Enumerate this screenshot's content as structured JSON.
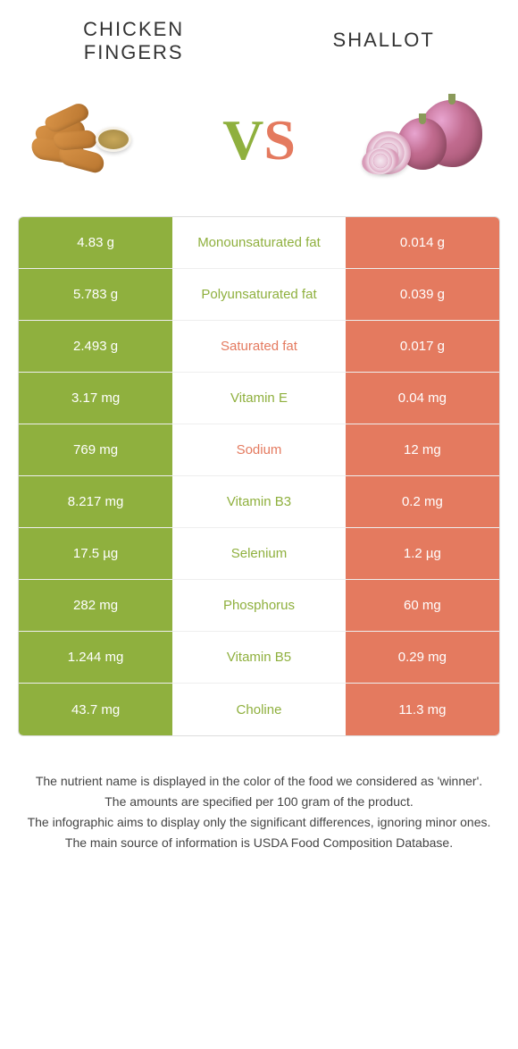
{
  "header": {
    "left_title": "CHICKEN FINGERS",
    "right_title": "SHALLOT"
  },
  "vs": {
    "v": "V",
    "s": "S"
  },
  "colors": {
    "left": "#8fb03e",
    "right": "#e47a5f",
    "left_text": "#8fb03e",
    "right_text": "#e47a5f"
  },
  "rows": [
    {
      "left": "4.83 g",
      "label": "Monounsaturated fat",
      "right": "0.014 g",
      "label_color": "#8fb03e"
    },
    {
      "left": "5.783 g",
      "label": "Polyunsaturated fat",
      "right": "0.039 g",
      "label_color": "#8fb03e"
    },
    {
      "left": "2.493 g",
      "label": "Saturated fat",
      "right": "0.017 g",
      "label_color": "#e47a5f"
    },
    {
      "left": "3.17 mg",
      "label": "Vitamin E",
      "right": "0.04 mg",
      "label_color": "#8fb03e"
    },
    {
      "left": "769 mg",
      "label": "Sodium",
      "right": "12 mg",
      "label_color": "#e47a5f"
    },
    {
      "left": "8.217 mg",
      "label": "Vitamin B3",
      "right": "0.2 mg",
      "label_color": "#8fb03e"
    },
    {
      "left": "17.5 µg",
      "label": "Selenium",
      "right": "1.2 µg",
      "label_color": "#8fb03e"
    },
    {
      "left": "282 mg",
      "label": "Phosphorus",
      "right": "60 mg",
      "label_color": "#8fb03e"
    },
    {
      "left": "1.244 mg",
      "label": "Vitamin B5",
      "right": "0.29 mg",
      "label_color": "#8fb03e"
    },
    {
      "left": "43.7 mg",
      "label": "Choline",
      "right": "11.3 mg",
      "label_color": "#8fb03e"
    }
  ],
  "footer": {
    "line1": "The nutrient name is displayed in the color of the food we considered as 'winner'.",
    "line2": "The amounts are specified per 100 gram of the product.",
    "line3": "The infographic aims to display only the significant differences, ignoring minor ones.",
    "line4": "The main source of information is USDA Food Composition Database."
  }
}
